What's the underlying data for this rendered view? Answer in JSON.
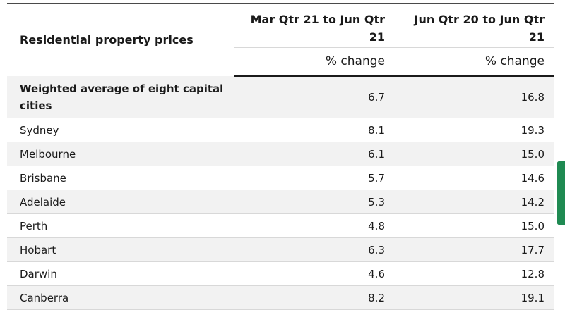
{
  "table": {
    "row_heading_title": "Residential property prices",
    "columns": [
      {
        "period": "Mar Qtr 21 to Jun Qtr 21",
        "unit": "% change"
      },
      {
        "period": "Jun Qtr 20 to Jun Qtr 21",
        "unit": "% change"
      }
    ],
    "rows": [
      {
        "city": "Weighted average of eight capital cities",
        "q": "6.7",
        "y": "16.8"
      },
      {
        "city": "Sydney",
        "q": "8.1",
        "y": "19.3"
      },
      {
        "city": "Melbourne",
        "q": "6.1",
        "y": "15.0"
      },
      {
        "city": "Brisbane",
        "q": "5.7",
        "y": "14.6"
      },
      {
        "city": "Adelaide",
        "q": "5.3",
        "y": "14.2"
      },
      {
        "city": "Perth",
        "q": "4.8",
        "y": "15.0"
      },
      {
        "city": "Hobart",
        "q": "6.3",
        "y": "17.7"
      },
      {
        "city": "Darwin",
        "q": "4.6",
        "y": "12.8"
      },
      {
        "city": "Canberra",
        "q": "8.2",
        "y": "19.1"
      }
    ]
  },
  "colors": {
    "side_tab": "#1f8a52",
    "row_stripe": "#f2f2f2"
  }
}
